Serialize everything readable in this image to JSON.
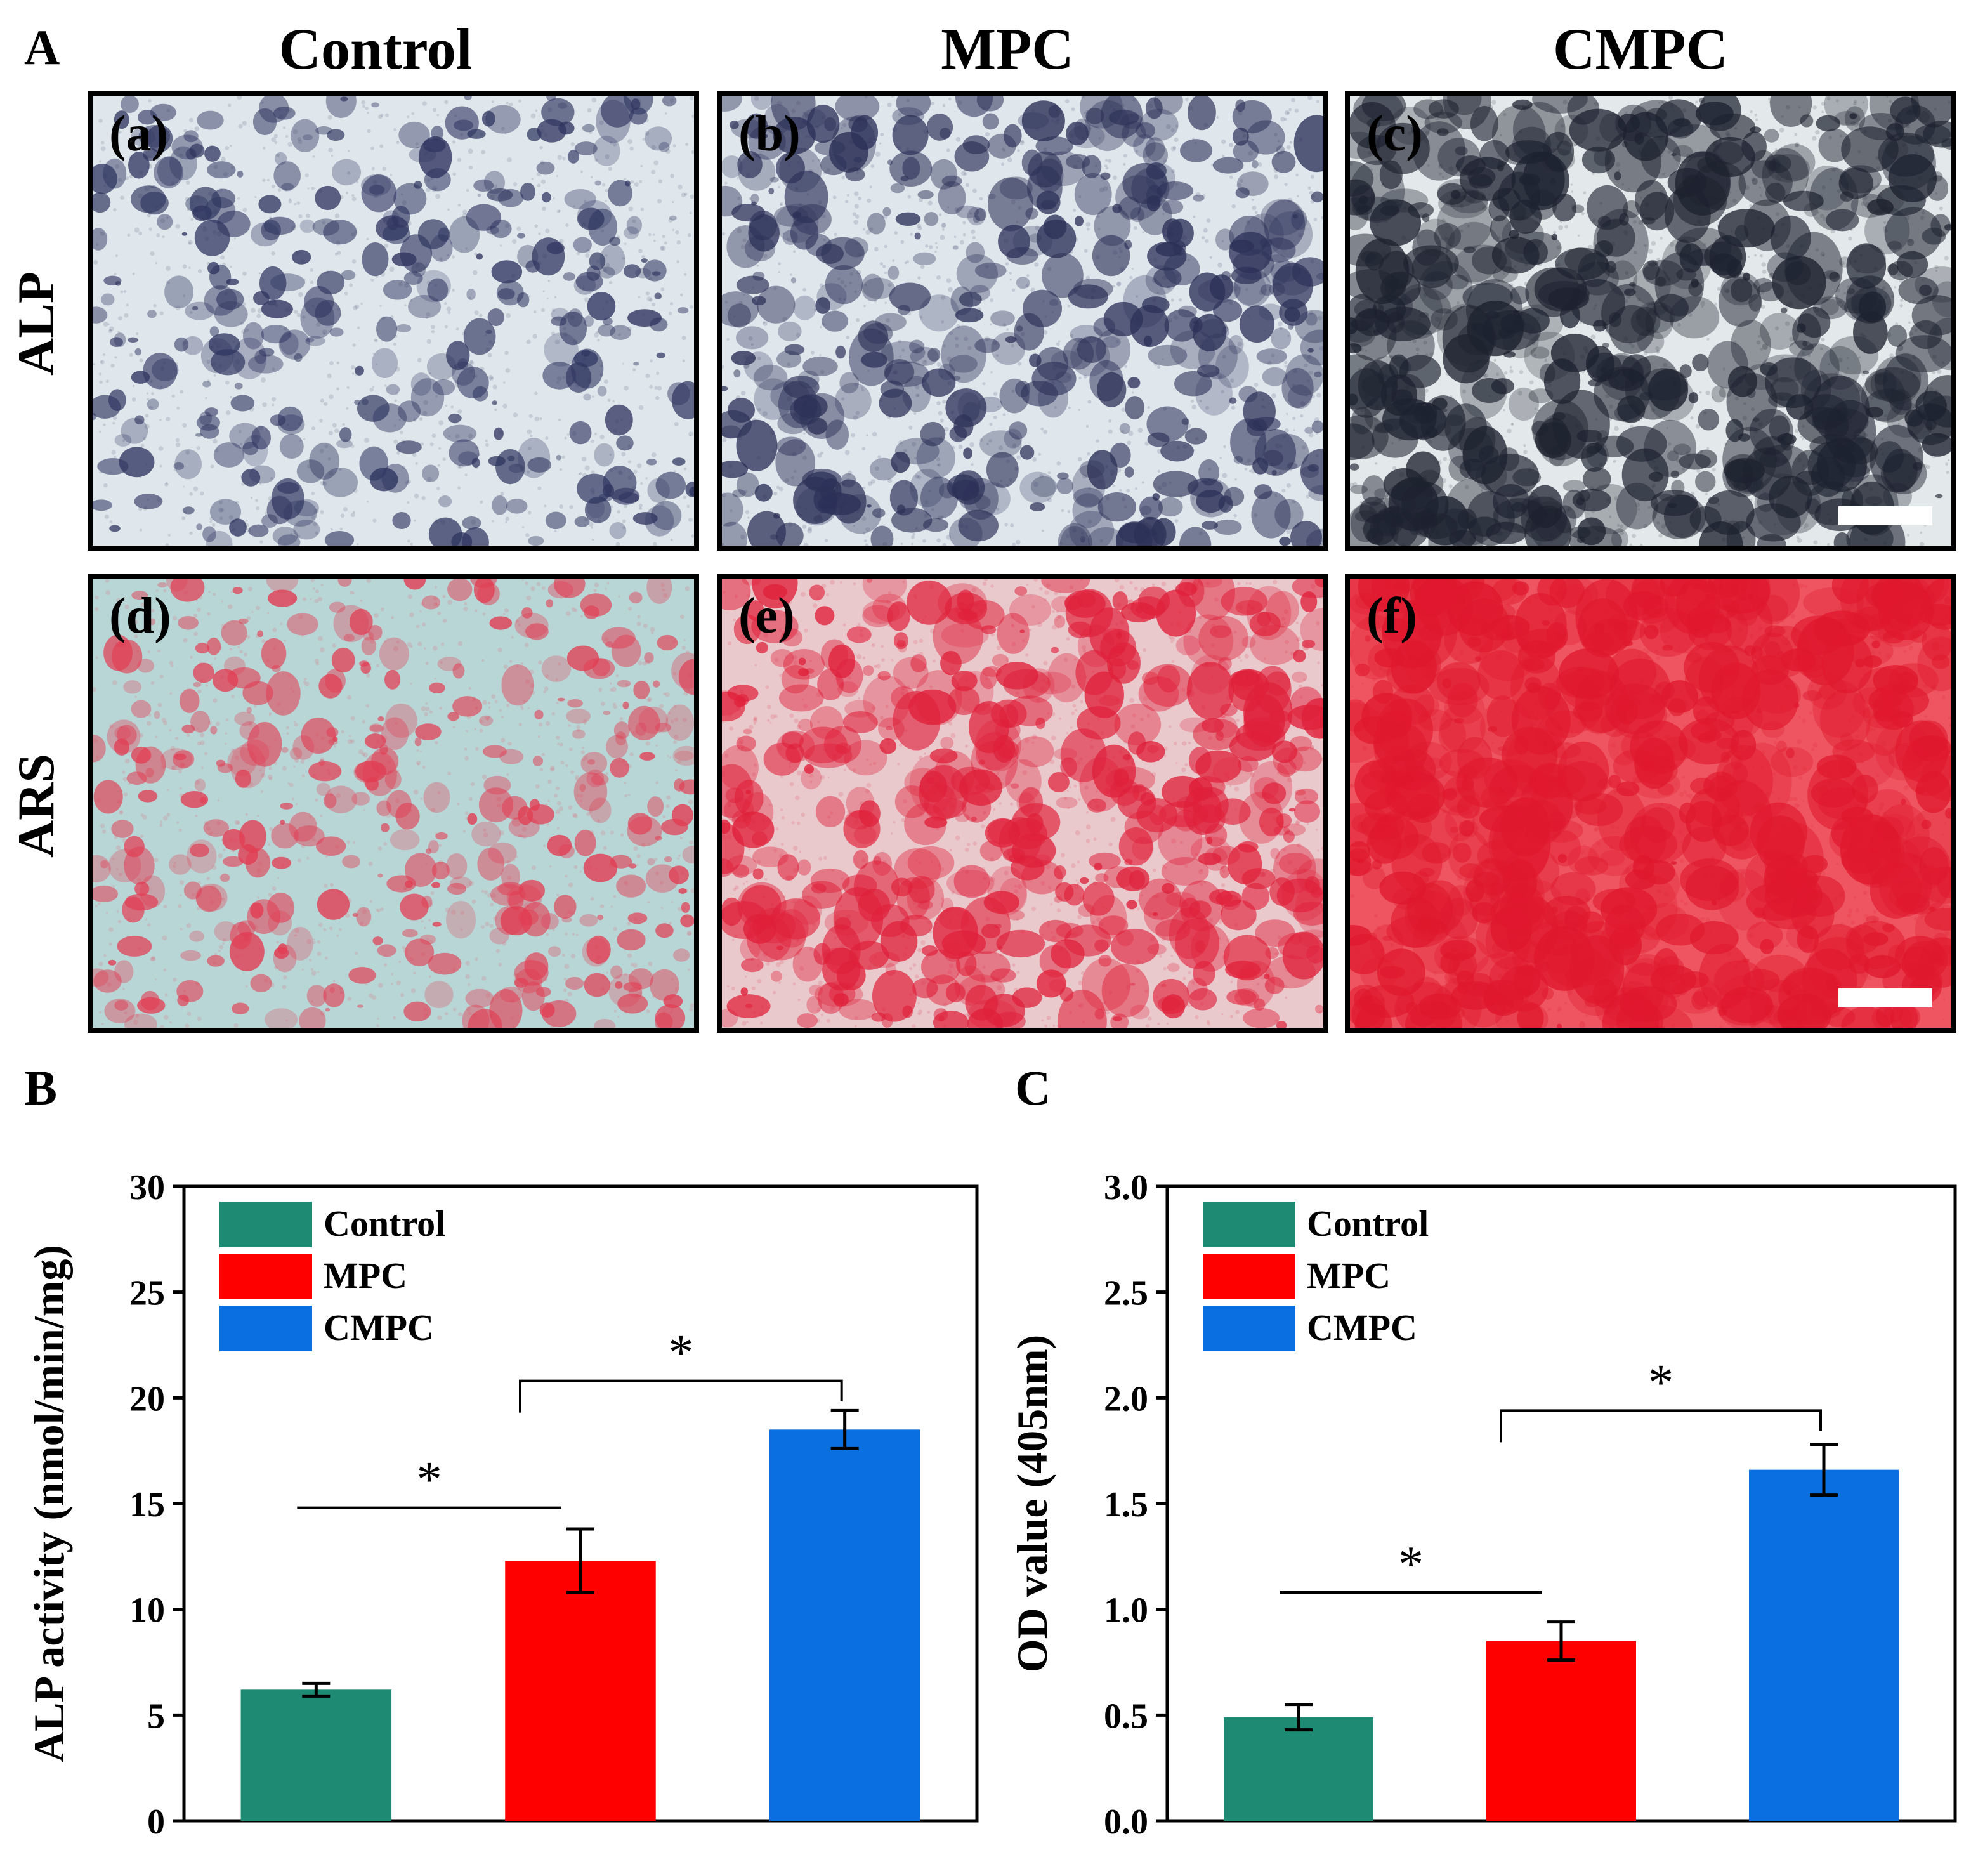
{
  "figure": {
    "panel_A_label": "A",
    "panel_B_label": "B",
    "panel_C_label": "C",
    "columns": [
      "Control",
      "MPC",
      "CMPC"
    ],
    "rows": [
      "ALP",
      "ARS"
    ],
    "micrographs": [
      {
        "label": "(a)",
        "row": "ALP",
        "group": "Control",
        "base": "#dfe7ec",
        "spot": "#2f3560",
        "density": 0.35
      },
      {
        "label": "(b)",
        "row": "ALP",
        "group": "MPC",
        "base": "#dfe6ec",
        "spot": "#2c3158",
        "density": 0.55
      },
      {
        "label": "(c)",
        "row": "ALP",
        "group": "CMPC",
        "base": "#e3e8ea",
        "spot": "#1d2230",
        "density": 0.8
      },
      {
        "label": "(d)",
        "row": "ARS",
        "group": "Control",
        "base": "#b9d6d6",
        "spot": "#e23c52",
        "density": 0.35
      },
      {
        "label": "(e)",
        "row": "ARS",
        "group": "MPC",
        "base": "#e9c9cc",
        "spot": "#e0203a",
        "density": 0.65
      },
      {
        "label": "(f)",
        "row": "ARS",
        "group": "CMPC",
        "base": "#ee5560",
        "spot": "#e0182e",
        "density": 0.9
      }
    ]
  },
  "chart_data": [
    {
      "type": "bar",
      "id": "B",
      "categories": [
        "Control",
        "MPC",
        "CMPC"
      ],
      "values": [
        6.2,
        12.3,
        18.5
      ],
      "errors": [
        0.3,
        1.5,
        0.9
      ],
      "colors": [
        "#1f8a74",
        "#ff0000",
        "#0a6fe0"
      ],
      "legend": [
        "Control",
        "MPC",
        "CMPC"
      ],
      "xlabel": "",
      "ylabel": "ALP activity (nmol/min/mg)",
      "ylim": [
        0,
        30
      ],
      "yticks": [
        0,
        5,
        10,
        15,
        20,
        25,
        30
      ],
      "ytick_labels": [
        "0",
        "5",
        "10",
        "15",
        "20",
        "25",
        "30"
      ],
      "significance": [
        {
          "from": 0,
          "to": 1,
          "label": "*",
          "style": "line",
          "y": 14.8
        },
        {
          "from": 1,
          "to": 2,
          "label": "*",
          "style": "bracket",
          "y": 20.8
        }
      ]
    },
    {
      "type": "bar",
      "id": "C",
      "categories": [
        "Control",
        "MPC",
        "CMPC"
      ],
      "values": [
        0.49,
        0.85,
        1.66
      ],
      "errors": [
        0.06,
        0.09,
        0.12
      ],
      "colors": [
        "#1f8a74",
        "#ff0000",
        "#0a6fe0"
      ],
      "legend": [
        "Control",
        "MPC",
        "CMPC"
      ],
      "xlabel": "",
      "ylabel": "OD value (405nm)",
      "ylim": [
        0,
        3.0
      ],
      "yticks": [
        0,
        0.5,
        1.0,
        1.5,
        2.0,
        2.5,
        3.0
      ],
      "ytick_labels": [
        "0.0",
        "0.5",
        "1.0",
        "1.5",
        "2.0",
        "2.5",
        "3.0"
      ],
      "significance": [
        {
          "from": 0,
          "to": 1,
          "label": "*",
          "style": "line",
          "y": 1.08
        },
        {
          "from": 1,
          "to": 2,
          "label": "*",
          "style": "bracket",
          "y": 1.94
        }
      ]
    }
  ]
}
